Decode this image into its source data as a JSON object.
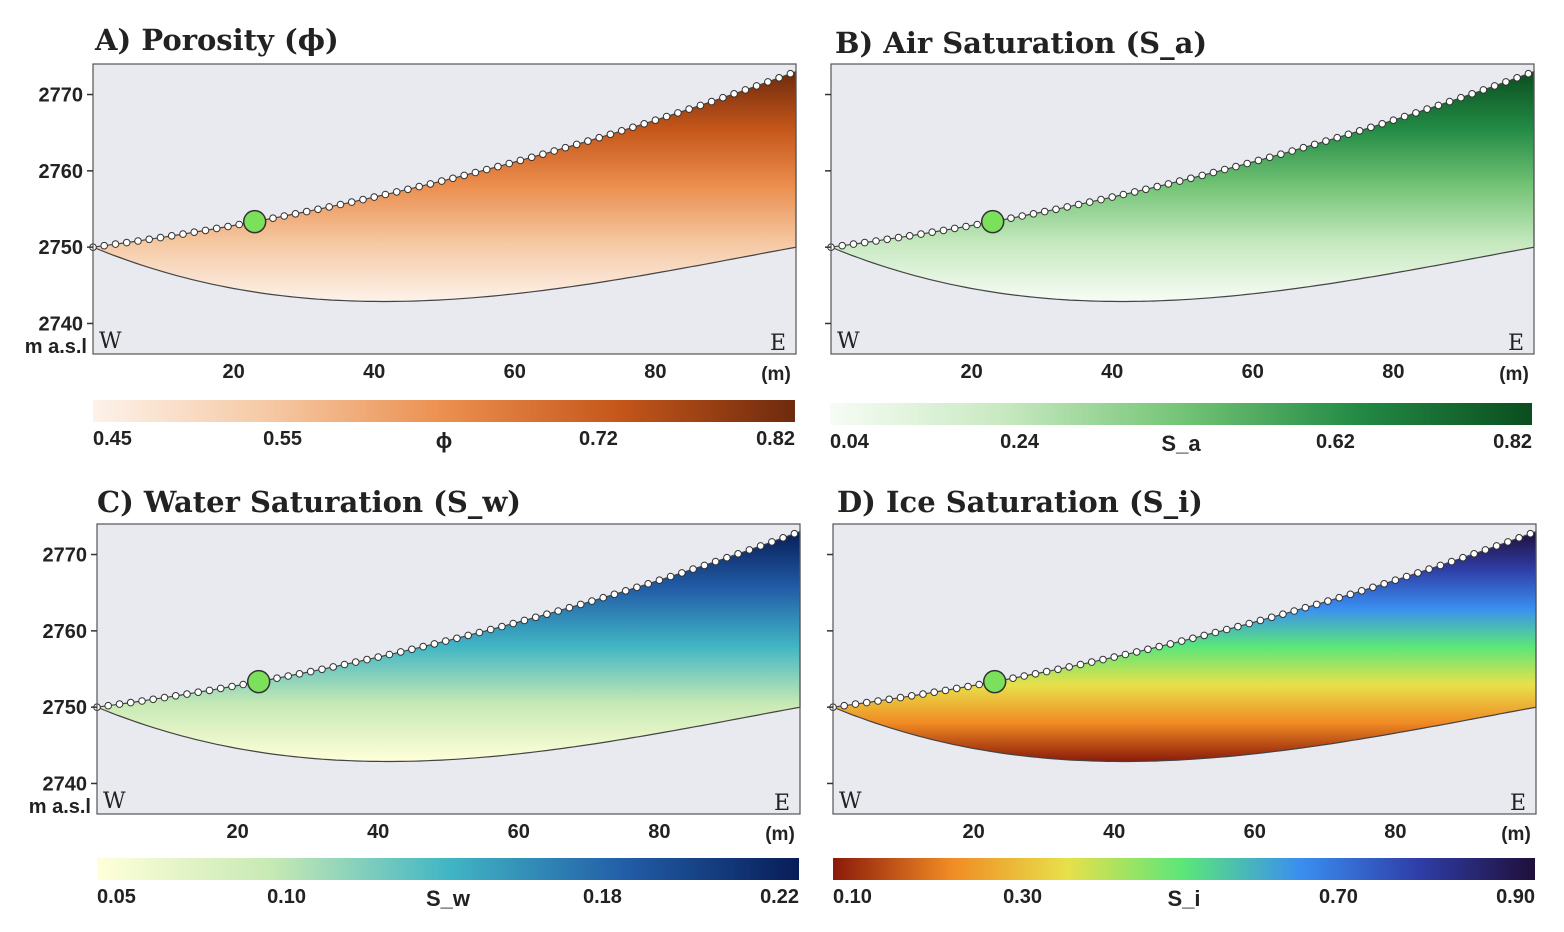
{
  "chart_data": [
    {
      "type": "heatmap",
      "title": "A) Porosity (ϕ)",
      "ylabel": "m a.s.l",
      "xunit": "(m)",
      "xticks": [
        "20",
        "40",
        "60",
        "80"
      ],
      "yticks": [
        "2770",
        "2760",
        "2750",
        "2740"
      ],
      "xlim": [
        0,
        100
      ],
      "ylim": [
        2736,
        2774
      ],
      "left_label": "W",
      "right_label": "E",
      "colorbar": {
        "label": "ϕ",
        "ticks": [
          "0.45",
          "0.55",
          "0.72",
          "0.82"
        ],
        "colors": [
          "#fdf2ea",
          "#f5c9a4",
          "#eb8f4f",
          "#c5561a",
          "#6e2a0d"
        ]
      },
      "marker": {
        "x": 23,
        "y": 2754,
        "color": "#7be05a"
      }
    },
    {
      "type": "heatmap",
      "title": "B) Air Saturation (S_a)",
      "xunit": "(m)",
      "xticks": [
        "20",
        "40",
        "60",
        "80"
      ],
      "xlim": [
        0,
        100
      ],
      "ylim": [
        2736,
        2774
      ],
      "left_label": "W",
      "right_label": "E",
      "colorbar": {
        "label": "S_a",
        "ticks": [
          "0.04",
          "0.24",
          "0.62",
          "0.82"
        ],
        "colors": [
          "#f7fcf5",
          "#c7e9c0",
          "#74c476",
          "#238b45",
          "#0b4d1f"
        ]
      },
      "marker": {
        "x": 23,
        "y": 2754,
        "color": "#7be05a"
      }
    },
    {
      "type": "heatmap",
      "title": "C) Water Saturation (S_w)",
      "ylabel": "m a.s.l",
      "xunit": "(m)",
      "xticks": [
        "20",
        "40",
        "60",
        "80"
      ],
      "yticks": [
        "2770",
        "2760",
        "2750",
        "2740"
      ],
      "xlim": [
        0,
        100
      ],
      "ylim": [
        2736,
        2774
      ],
      "left_label": "W",
      "right_label": "E",
      "colorbar": {
        "label": "S_w",
        "ticks": [
          "0.05",
          "0.10",
          "0.18",
          "0.22"
        ],
        "colors": [
          "#ffffd9",
          "#c7e9b4",
          "#41b6c4",
          "#225ea8",
          "#081d58"
        ]
      },
      "marker": {
        "x": 23,
        "y": 2754,
        "color": "#7be05a"
      }
    },
    {
      "type": "heatmap",
      "title": "D) Ice Saturation (S_i)",
      "xunit": "(m)",
      "xticks": [
        "20",
        "40",
        "60",
        "80"
      ],
      "xlim": [
        0,
        100
      ],
      "ylim": [
        2736,
        2774
      ],
      "left_label": "W",
      "right_label": "E",
      "colorbar": {
        "label": "S_i",
        "ticks": [
          "0.10",
          "0.30",
          "0.70",
          "0.90"
        ],
        "colors": [
          "#8b1a0a",
          "#f08a24",
          "#e8e04a",
          "#5be67a",
          "#3a8ef0",
          "#2f3ea8",
          "#1f0f3a"
        ]
      },
      "marker": {
        "x": 23,
        "y": 2754,
        "color": "#7be05a"
      }
    }
  ]
}
